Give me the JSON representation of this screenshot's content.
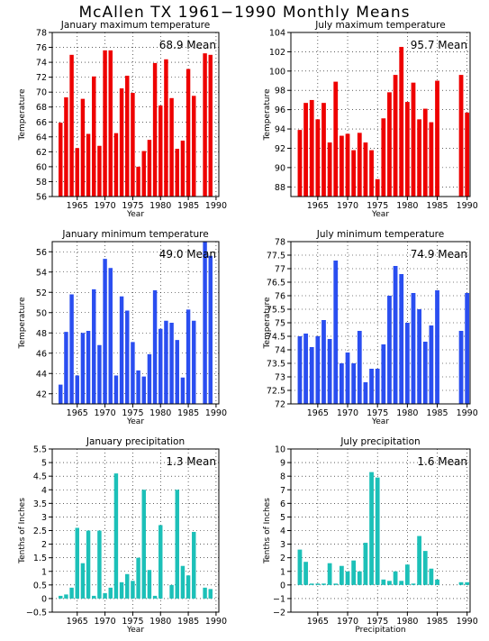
{
  "title": "McAllen TX   1961−1990  Monthly Means",
  "colors": {
    "red": "#ee0000",
    "blue": "#2a4ef0",
    "cyan": "#1cc0b8"
  },
  "chart_data": [
    {
      "type": "bar",
      "title": "January maximum temperature",
      "xlabel": "Year",
      "ylabel": "Temperature",
      "mean_label": "68.9  Mean",
      "color": "red",
      "x": [
        1961,
        1962,
        1963,
        1964,
        1965,
        1966,
        1967,
        1968,
        1969,
        1970,
        1971,
        1972,
        1973,
        1974,
        1975,
        1976,
        1977,
        1978,
        1979,
        1980,
        1981,
        1982,
        1983,
        1984,
        1985,
        1986,
        1987,
        1988,
        1989,
        1990
      ],
      "values": [
        null,
        65.9,
        69.3,
        75.0,
        62.5,
        69.1,
        64.4,
        72.1,
        62.8,
        75.6,
        75.6,
        64.5,
        70.5,
        72.2,
        69.9,
        60.0,
        62.1,
        63.6,
        73.9,
        68.2,
        74.4,
        69.2,
        62.4,
        63.5,
        73.1,
        69.5,
        null,
        75.2,
        75.0,
        null
      ],
      "xlim": [
        1960.5,
        1990.5
      ],
      "ylim": [
        56,
        78
      ],
      "xticks": [
        1965,
        1970,
        1975,
        1980,
        1985,
        1990
      ],
      "yticks": [
        56,
        58,
        60,
        62,
        64,
        66,
        68,
        70,
        72,
        74,
        76,
        78
      ],
      "ytick_labels": [
        "56",
        "58",
        "60",
        "62",
        "64",
        "66",
        "68",
        "70",
        "72",
        "74",
        "76",
        "78"
      ]
    },
    {
      "type": "bar",
      "title": "July maximum temperature",
      "xlabel": "Year",
      "ylabel": "Temperature",
      "mean_label": "95.7  Mean",
      "color": "red",
      "x": [
        1961,
        1962,
        1963,
        1964,
        1965,
        1966,
        1967,
        1968,
        1969,
        1970,
        1971,
        1972,
        1973,
        1974,
        1975,
        1976,
        1977,
        1978,
        1979,
        1980,
        1981,
        1982,
        1983,
        1984,
        1985,
        1986,
        1987,
        1988,
        1989,
        1990
      ],
      "values": [
        null,
        93.9,
        96.7,
        97.0,
        95.0,
        96.7,
        92.6,
        98.9,
        93.3,
        93.5,
        91.8,
        93.6,
        92.6,
        91.8,
        88.8,
        95.1,
        97.8,
        99.6,
        102.5,
        96.8,
        98.8,
        95.0,
        96.1,
        94.7,
        99.0,
        null,
        null,
        null,
        99.6,
        95.7
      ],
      "xlim": [
        1960.5,
        1990.5
      ],
      "ylim": [
        87,
        104
      ],
      "xticks": [
        1965,
        1970,
        1975,
        1980,
        1985,
        1990
      ],
      "yticks": [
        88,
        90,
        92,
        94,
        96,
        98,
        100,
        102,
        104
      ],
      "ytick_labels": [
        "88",
        "90",
        "92",
        "94",
        "96",
        "98",
        "100",
        "102",
        "104"
      ]
    },
    {
      "type": "bar",
      "title": "January minimum temperature",
      "xlabel": "Year",
      "ylabel": "Temperature",
      "mean_label": "49.0  Mean",
      "color": "blue",
      "x": [
        1961,
        1962,
        1963,
        1964,
        1965,
        1966,
        1967,
        1968,
        1969,
        1970,
        1971,
        1972,
        1973,
        1974,
        1975,
        1976,
        1977,
        1978,
        1979,
        1980,
        1981,
        1982,
        1983,
        1984,
        1985,
        1986,
        1987,
        1988,
        1989,
        1990
      ],
      "values": [
        null,
        42.9,
        48.1,
        51.8,
        43.8,
        48.0,
        48.2,
        52.3,
        46.8,
        55.3,
        54.4,
        43.8,
        51.6,
        50.2,
        47.1,
        44.3,
        43.7,
        45.9,
        52.2,
        48.4,
        49.2,
        49.0,
        47.3,
        43.6,
        50.3,
        49.2,
        null,
        57.6,
        55.6,
        null
      ],
      "xlim": [
        1960.5,
        1990.5
      ],
      "ylim": [
        41,
        57
      ],
      "xticks": [
        1965,
        1970,
        1975,
        1980,
        1985,
        1990
      ],
      "yticks": [
        42,
        44,
        46,
        48,
        50,
        52,
        54,
        56
      ],
      "ytick_labels": [
        "42",
        "44",
        "46",
        "48",
        "50",
        "52",
        "54",
        "56"
      ]
    },
    {
      "type": "bar",
      "title": "July minimum temperature",
      "xlabel": "Year",
      "ylabel": "Temperature",
      "mean_label": "74.9  Mean",
      "color": "blue",
      "x": [
        1961,
        1962,
        1963,
        1964,
        1965,
        1966,
        1967,
        1968,
        1969,
        1970,
        1971,
        1972,
        1973,
        1974,
        1975,
        1976,
        1977,
        1978,
        1979,
        1980,
        1981,
        1982,
        1983,
        1984,
        1985,
        1986,
        1987,
        1988,
        1989,
        1990
      ],
      "values": [
        null,
        74.5,
        74.6,
        74.1,
        74.5,
        75.1,
        74.4,
        77.3,
        73.5,
        73.9,
        73.5,
        74.7,
        72.8,
        73.3,
        73.3,
        74.2,
        76.0,
        77.1,
        76.8,
        75.0,
        76.1,
        75.5,
        74.3,
        74.9,
        76.2,
        null,
        null,
        null,
        74.7,
        76.1
      ],
      "xlim": [
        1960.5,
        1990.5
      ],
      "ylim": [
        72,
        78
      ],
      "xticks": [
        1965,
        1970,
        1975,
        1980,
        1985,
        1990
      ],
      "yticks": [
        72,
        72.5,
        73,
        73.5,
        74,
        74.5,
        75,
        75.5,
        76,
        76.5,
        77,
        77.5,
        78
      ],
      "ytick_labels": [
        "72",
        "72.5",
        "73",
        "73.5",
        "74",
        "74.5",
        "75",
        "75.5",
        "76",
        "76.5",
        "77",
        "77.5",
        "78"
      ]
    },
    {
      "type": "bar",
      "title": "January precipitation",
      "xlabel": "Year",
      "ylabel": "Tenths of Inches",
      "mean_label": "1.3  Mean",
      "color": "cyan",
      "x": [
        1961,
        1962,
        1963,
        1964,
        1965,
        1966,
        1967,
        1968,
        1969,
        1970,
        1971,
        1972,
        1973,
        1974,
        1975,
        1976,
        1977,
        1978,
        1979,
        1980,
        1981,
        1982,
        1983,
        1984,
        1985,
        1986,
        1987,
        1988,
        1989,
        1990
      ],
      "values": [
        null,
        0.1,
        0.15,
        0.4,
        2.6,
        1.3,
        2.5,
        0.1,
        2.5,
        0.2,
        0.4,
        4.6,
        0.6,
        0.9,
        0.65,
        1.5,
        4.0,
        1.05,
        0.1,
        2.7,
        0.0,
        0.5,
        4.0,
        1.2,
        0.85,
        2.45,
        null,
        0.4,
        0.35,
        null
      ],
      "xlim": [
        1960.5,
        1990.5
      ],
      "ylim": [
        -0.5,
        5.5
      ],
      "xticks": [
        1965,
        1970,
        1975,
        1980,
        1985,
        1990
      ],
      "yticks": [
        -0.5,
        0,
        0.5,
        1,
        1.5,
        2,
        2.5,
        3,
        3.5,
        4,
        4.5,
        5,
        5.5
      ],
      "ytick_labels": [
        "−0.5",
        "0",
        "0.5",
        "1",
        "1.5",
        "2",
        "2.5",
        "3",
        "3.5",
        "4",
        "4.5",
        "5",
        "5.5"
      ]
    },
    {
      "type": "bar",
      "title": "July precipitation",
      "xlabel": "Precipitation",
      "ylabel": "Tenths of Inches",
      "mean_label": "1.6  Mean",
      "color": "cyan",
      "x": [
        1961,
        1962,
        1963,
        1964,
        1965,
        1966,
        1967,
        1968,
        1969,
        1970,
        1971,
        1972,
        1973,
        1974,
        1975,
        1976,
        1977,
        1978,
        1979,
        1980,
        1981,
        1982,
        1983,
        1984,
        1985,
        1986,
        1987,
        1988,
        1989,
        1990
      ],
      "values": [
        null,
        2.6,
        1.7,
        0.1,
        0.1,
        0.1,
        1.6,
        0.1,
        1.4,
        1.0,
        1.8,
        1.0,
        3.1,
        8.3,
        7.9,
        0.4,
        0.3,
        1.0,
        0.3,
        1.5,
        0.1,
        3.6,
        2.5,
        1.2,
        0.4,
        null,
        null,
        null,
        0.2,
        0.2
      ],
      "xlim": [
        1960.5,
        1990.5
      ],
      "ylim": [
        -2,
        10
      ],
      "xticks": [
        1965,
        1970,
        1975,
        1980,
        1985,
        1990
      ],
      "yticks": [
        -2,
        -1,
        0,
        1,
        2,
        3,
        4,
        5,
        6,
        7,
        8,
        9,
        10
      ],
      "ytick_labels": [
        "−2",
        "−1",
        "0",
        "1",
        "2",
        "3",
        "4",
        "5",
        "6",
        "7",
        "8",
        "9",
        "10"
      ]
    }
  ]
}
